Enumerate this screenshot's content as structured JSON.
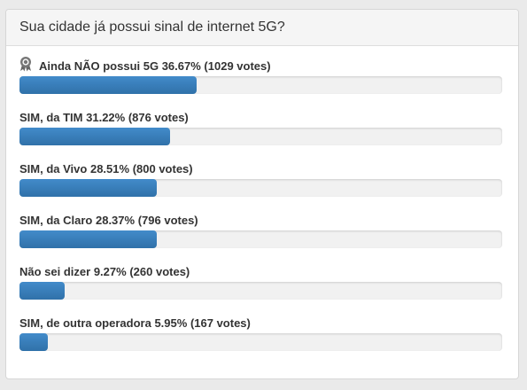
{
  "poll": {
    "title": "Sua cidade já possui sinal de internet 5G?",
    "options": [
      {
        "label": "Ainda NÃO possui 5G",
        "percent": {
          "value": 36.67,
          "label": "36.67%"
        },
        "votes": "(1029 votes)",
        "winner": true
      },
      {
        "label": "SIM, da TIM",
        "percent": {
          "value": 31.22,
          "label": "31.22%"
        },
        "votes": "(876 votes)"
      },
      {
        "label": "SIM, da Vivo",
        "percent": {
          "value": 28.51,
          "label": "28.51%"
        },
        "votes": "(800 votes)"
      },
      {
        "label": "SIM, da Claro",
        "percent": {
          "value": 28.37,
          "label": "28.37%"
        },
        "votes": "(796 votes)"
      },
      {
        "label": "Não sei dizer",
        "percent": {
          "value": 9.27,
          "label": "9.27%"
        },
        "votes": "(260 votes)"
      },
      {
        "label": "SIM, de outra operadora",
        "percent": {
          "value": 5.95,
          "label": "5.95%"
        },
        "votes": "(167 votes)"
      }
    ]
  }
}
